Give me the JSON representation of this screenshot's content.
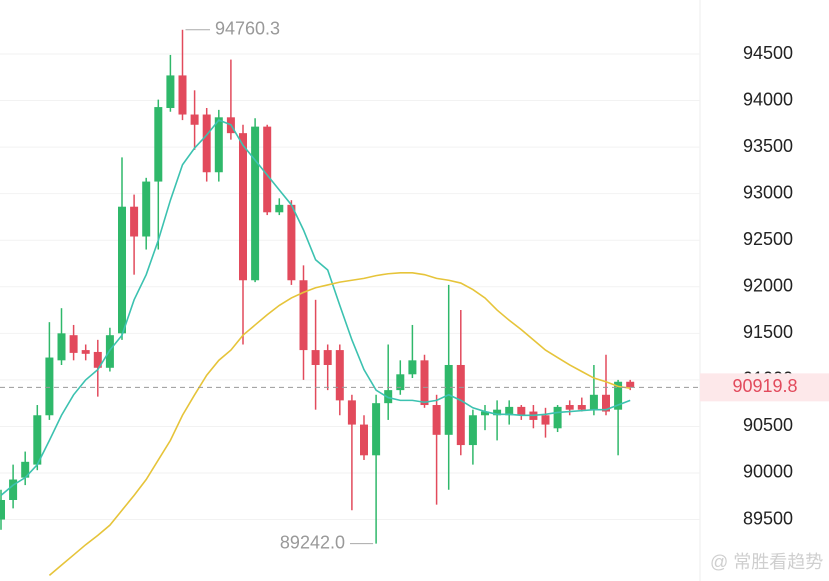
{
  "chart_data": {
    "type": "candlestick",
    "up_color": "#2fb86a",
    "down_color": "#e24a5c",
    "open": [
      89500,
      89710,
      89950,
      90090,
      90620,
      91210,
      91480,
      91320,
      91300,
      91130,
      91500,
      92860,
      92540,
      93130,
      93920,
      94270,
      93850,
      93850,
      93230,
      93820,
      93650,
      92070,
      93720,
      92800,
      92880,
      92070,
      91320,
      91320,
      91320,
      90780,
      90520,
      90190,
      90750,
      90890,
      91060,
      91210,
      90730,
      90410,
      91160,
      90300,
      90620,
      90620,
      90620,
      90710,
      90660,
      90620,
      90480,
      90730,
      90730,
      90680,
      90840,
      90680,
      90980
    ],
    "high": [
      89820,
      90090,
      90230,
      90730,
      91620,
      91770,
      91590,
      91380,
      91430,
      91560,
      93390,
      92990,
      93170,
      94010,
      94490,
      94760.3,
      94110,
      93920,
      93900,
      94440,
      93740,
      93810,
      93740,
      92950,
      92930,
      92230,
      91860,
      91380,
      91380,
      90840,
      90620,
      90840,
      91380,
      91210,
      91590,
      91270,
      90840,
      92020,
      91750,
      90680,
      90730,
      90780,
      90780,
      90730,
      90730,
      90700,
      90730,
      90780,
      90810,
      91160,
      91270,
      91000,
      91000
    ],
    "low": [
      89390,
      89620,
      89870,
      90030,
      90570,
      91160,
      91210,
      91210,
      90820,
      91090,
      91430,
      92130,
      92400,
      92400,
      93880,
      93790,
      93470,
      93130,
      93130,
      93580,
      91380,
      92050,
      92770,
      92770,
      92020,
      91000,
      90680,
      90890,
      90620,
      89600,
      90140,
      89242.0,
      90570,
      90840,
      91020,
      90700,
      89660,
      89820,
      90190,
      90090,
      90460,
      90350,
      90520,
      90570,
      90480,
      90380,
      90440,
      90620,
      90660,
      90620,
      90620,
      90190,
      90890
    ],
    "close": [
      89710,
      89930,
      90120,
      90620,
      91240,
      91500,
      91290,
      91280,
      91130,
      91480,
      92860,
      92540,
      93130,
      93930,
      94270,
      93850,
      93740,
      93230,
      93820,
      93650,
      92070,
      93720,
      92800,
      92880,
      92070,
      91320,
      91160,
      91160,
      90780,
      90520,
      90190,
      90750,
      90890,
      91060,
      91210,
      90730,
      90410,
      91160,
      90300,
      90620,
      90660,
      90680,
      90710,
      90620,
      90570,
      90520,
      90710,
      90680,
      90680,
      90840,
      90660,
      90980,
      90919.8
    ],
    "lines": [
      {
        "color": "#3cc2b0",
        "values": [
          89760,
          89870,
          89950,
          90090,
          90350,
          90620,
          90840,
          91000,
          91110,
          91320,
          91480,
          91860,
          92130,
          92500,
          92930,
          93310,
          93490,
          93630,
          93790,
          93740,
          93520,
          93360,
          93200,
          93040,
          92880,
          92610,
          92290,
          92180,
          91800,
          91430,
          91110,
          90890,
          90810,
          90780,
          90780,
          90760,
          90780,
          90840,
          90780,
          90700,
          90660,
          90630,
          90630,
          90620,
          90620,
          90630,
          90650,
          90660,
          90670,
          90680,
          90680,
          90730,
          90780
        ]
      },
      {
        "color": "#e6c43a",
        "values": [
          null,
          null,
          null,
          null,
          88900,
          89010,
          89120,
          89230,
          89330,
          89440,
          89600,
          89760,
          89930,
          90140,
          90350,
          90620,
          90840,
          91050,
          91210,
          91320,
          91480,
          91590,
          91700,
          91800,
          91880,
          91940,
          91990,
          92020,
          92050,
          92070,
          92090,
          92120,
          92140,
          92150,
          92150,
          92130,
          92090,
          92070,
          92040,
          91970,
          91880,
          91750,
          91640,
          91540,
          91430,
          91320,
          91240,
          91160,
          91090,
          91020,
          90980,
          90930,
          90910
        ]
      }
    ],
    "ylim": [
      88840,
      95080
    ],
    "yticks": [
      89500,
      90000,
      90500,
      91000,
      91500,
      92000,
      92500,
      93000,
      93500,
      94000,
      94500
    ],
    "grid": true,
    "high_annotation": 94760.3,
    "low_annotation": {
      "value": 89242.0,
      "label": "89242.0"
    },
    "last_price": 90919.8,
    "watermark": "@ 常胜看趋势"
  }
}
